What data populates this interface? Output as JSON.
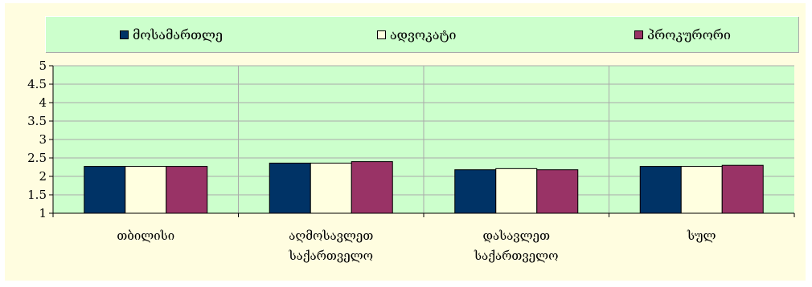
{
  "chart_data": {
    "type": "bar",
    "categories": [
      [
        "თბილისი"
      ],
      [
        "აღმოსავლეთ",
        "საქართველო"
      ],
      [
        "დასავლეთ",
        "საქართველო"
      ],
      [
        "სულ"
      ]
    ],
    "series": [
      {
        "name": "მოსამართლე",
        "color": "#003366",
        "values": [
          2.27,
          2.36,
          2.18,
          2.27
        ]
      },
      {
        "name": "ადვოკატი",
        "color": "#ffffe0",
        "values": [
          2.27,
          2.36,
          2.21,
          2.27
        ]
      },
      {
        "name": "პროკურორი",
        "color": "#993366",
        "values": [
          2.27,
          2.4,
          2.18,
          2.3
        ]
      }
    ],
    "y_ticks": [
      "1",
      "1.5",
      "2",
      "2.5",
      "3",
      "3.5",
      "4",
      "4.5",
      "5"
    ],
    "ylim": [
      1,
      5
    ],
    "legend_position": "top",
    "grid": true
  },
  "colors": {
    "frame_background": "#fffde0",
    "plot_background": "#ccffcc",
    "legend_background": "#ccffcc",
    "gridline": "#aaaaaa"
  }
}
